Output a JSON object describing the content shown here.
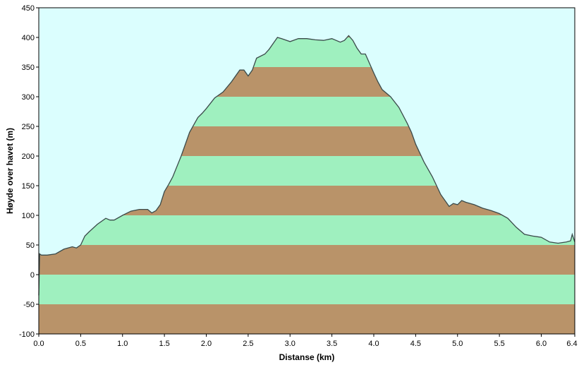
{
  "chart_data": {
    "type": "area",
    "title": "",
    "xlabel": "Distanse  (km)",
    "ylabel": "Høyde over havet (m)",
    "xlim": [
      0,
      6.4
    ],
    "ylim": [
      -100,
      450
    ],
    "x_ticks": [
      "0.0",
      "0.5",
      "1.0",
      "1.5",
      "2.0",
      "2.5",
      "3.0",
      "3.5",
      "4.0",
      "4.5",
      "5.0",
      "5.5",
      "6.0",
      "6.4"
    ],
    "x_tick_values": [
      0,
      0.5,
      1.0,
      1.5,
      2.0,
      2.5,
      3.0,
      3.5,
      4.0,
      4.5,
      5.0,
      5.5,
      6.0,
      6.4
    ],
    "y_ticks": [
      "450",
      "400",
      "350",
      "300",
      "250",
      "200",
      "150",
      "100",
      "50",
      "0",
      "-50",
      "-100"
    ],
    "y_tick_values": [
      450,
      400,
      350,
      300,
      250,
      200,
      150,
      100,
      50,
      0,
      -50,
      -100
    ],
    "band_interval": 50,
    "series": [
      {
        "x": [
          0.0,
          0.01,
          0.03,
          0.05,
          0.1,
          0.2,
          0.3,
          0.4,
          0.45,
          0.5,
          0.55,
          0.6,
          0.7,
          0.8,
          0.85,
          0.9,
          1.0,
          1.1,
          1.2,
          1.3,
          1.35,
          1.4,
          1.45,
          1.5,
          1.55,
          1.6,
          1.7,
          1.8,
          1.9,
          1.95,
          2.0,
          2.1,
          2.2,
          2.3,
          2.4,
          2.45,
          2.5,
          2.55,
          2.6,
          2.7,
          2.75,
          2.8,
          2.85,
          2.9,
          3.0,
          3.1,
          3.2,
          3.3,
          3.4,
          3.5,
          3.6,
          3.65,
          3.7,
          3.75,
          3.8,
          3.85,
          3.9,
          4.0,
          4.05,
          4.1,
          4.2,
          4.3,
          4.4,
          4.45,
          4.5,
          4.55,
          4.6,
          4.7,
          4.8,
          4.9,
          4.95,
          5.0,
          5.05,
          5.1,
          5.2,
          5.3,
          5.4,
          5.5,
          5.6,
          5.7,
          5.8,
          5.9,
          6.0,
          6.1,
          6.2,
          6.3,
          6.35,
          6.37,
          6.4
        ],
        "y": [
          -35,
          35,
          33,
          33,
          33,
          35,
          43,
          47,
          45,
          50,
          65,
          72,
          85,
          95,
          92,
          92,
          100,
          107,
          110,
          110,
          104,
          108,
          118,
          140,
          152,
          165,
          200,
          240,
          265,
          272,
          280,
          298,
          308,
          325,
          345,
          345,
          335,
          345,
          365,
          372,
          380,
          390,
          400,
          398,
          393,
          398,
          398,
          396,
          395,
          398,
          392,
          395,
          403,
          395,
          382,
          372,
          372,
          340,
          325,
          312,
          300,
          282,
          255,
          240,
          220,
          205,
          190,
          165,
          135,
          115,
          120,
          118,
          125,
          122,
          118,
          112,
          108,
          103,
          95,
          80,
          68,
          65,
          63,
          55,
          53,
          55,
          57,
          68,
          55
        ]
      }
    ],
    "colors": {
      "background": "#dbfefe",
      "band_green": "#9ff0bf",
      "band_brown": "#b99369",
      "profile_line": "#3a4a4a",
      "axis": "#000000"
    }
  }
}
